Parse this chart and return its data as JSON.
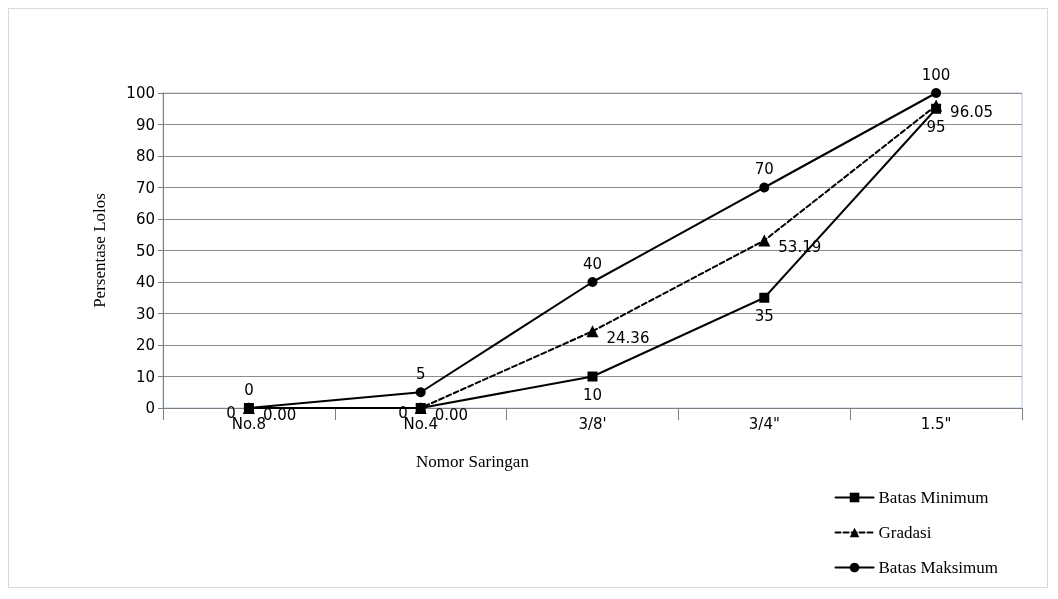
{
  "chart_data": {
    "type": "line",
    "xlabel": "Nomor Saringan",
    "ylabel": "Persentase Lolos",
    "categories": [
      "No.8",
      "No.4",
      "3/8'",
      "3/4\"",
      "1.5\""
    ],
    "ylim": [
      0,
      100
    ],
    "yticks": [
      0,
      10,
      20,
      30,
      40,
      50,
      60,
      70,
      80,
      90,
      100
    ],
    "grid": "y",
    "legend": "bottom right",
    "series": [
      {
        "name": "Batas Minimum",
        "color": "#000000",
        "marker": "square",
        "line_style": "solid",
        "values": [
          0,
          0,
          10,
          35,
          95
        ],
        "value_labels": [
          "0",
          "0",
          "10",
          "35",
          "95"
        ]
      },
      {
        "name": "Gradasi",
        "color": "#000000",
        "marker": "triangle",
        "line_style": "dashed",
        "values": [
          0.0,
          0.0,
          24.36,
          53.19,
          96.05
        ],
        "value_labels": [
          "0.00",
          "0.00",
          "24.36",
          "53.19",
          "96.05"
        ]
      },
      {
        "name": "Batas Maksimum",
        "color": "#000000",
        "marker": "circle",
        "line_style": "solid",
        "values": [
          0,
          5,
          40,
          70,
          100
        ],
        "value_labels": [
          "0",
          "5",
          "40",
          "70",
          "100"
        ]
      }
    ]
  }
}
